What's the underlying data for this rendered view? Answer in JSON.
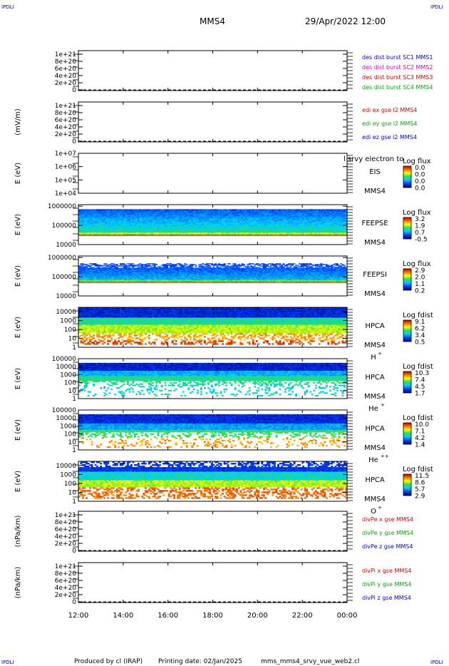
{
  "header": {
    "corner_tag": "IPDLI",
    "spacecraft": "MMS4",
    "datetime": "29/Apr/2022 12:00"
  },
  "footer": {
    "produced_by": "Produced by cl (IRAP)",
    "printing_date": "Printing date: 02/Jan/2025",
    "filename": "mms_mms4_srvy_vue_web2.cl"
  },
  "chart_data": {
    "type": "heatmap",
    "x_tick_labels": [
      "12:00",
      "14:00",
      "16:00",
      "18:00",
      "20:00",
      "22:00",
      "00:00"
    ],
    "x_hours": [
      12,
      14,
      16,
      18,
      20,
      22,
      24
    ],
    "panels": [
      {
        "kind": "line",
        "ylabel": "",
        "ytick_labels": [
          "1e+21",
          "8e+20",
          "6e+20",
          "4e+20",
          "2e+20",
          "0"
        ],
        "ytick_values": [
          1e+21,
          8e+20,
          6e+20,
          4e+20,
          2e+20,
          0
        ],
        "ylim": [
          -2e+19,
          1.1e+21
        ],
        "legend": [
          {
            "text": "des dist burst SC1 MMS1",
            "color": "#0000cc"
          },
          {
            "text": "des dist burst SC2 MMS2",
            "color": "#cc00cc"
          },
          {
            "text": "des dist burst SC3 MMS3",
            "color": "#cc0000"
          },
          {
            "text": "des dist burst SC4 MMS4",
            "color": "#00aa00"
          }
        ]
      },
      {
        "kind": "line",
        "ylabel": "(mV/m)",
        "ytick_labels": [
          "1e+21",
          "8e+20",
          "6e+20",
          "4e+20",
          "2e+20",
          "0"
        ],
        "ytick_values": [
          1e+21,
          8e+20,
          6e+20,
          4e+20,
          2e+20,
          0
        ],
        "ylim": [
          -2e+19,
          1.1e+21
        ],
        "legend": [
          {
            "text": "edi ex gse l2 MMS4",
            "color": "#cc0000"
          },
          {
            "text": "edi ey gse l2 MMS4",
            "color": "#00aa00"
          },
          {
            "text": "edi ez gse l2 MMS4",
            "color": "#0000cc"
          }
        ]
      },
      {
        "kind": "empty_spectrogram",
        "ylabel": "E (eV)",
        "ytick_labels": [
          "1e+07",
          "1e+06",
          "1e+05",
          "1e+04"
        ],
        "ytick_values": [
          10000000.0,
          1000000.0,
          100000.0,
          10000.0
        ],
        "log": true,
        "ylim": [
          10000.0,
          10000000.0
        ],
        "instrument": [
          "EIS",
          "MMS4"
        ],
        "overlay_text": "l srvy electron to",
        "colorbar": {
          "title": "Log flux",
          "labels": [
            "0.0",
            "0.0",
            "0.0",
            "0.0"
          ]
        }
      },
      {
        "kind": "spectrogram",
        "ylabel": "E (eV)",
        "ytick_labels": [
          "1000000",
          "100000",
          "10000"
        ],
        "ytick_values": [
          1000000.0,
          100000.0,
          10000.0
        ],
        "log": true,
        "ylim": [
          10000.0,
          1200000.0
        ],
        "instrument": [
          "FEEPSE",
          "MMS4"
        ],
        "colorbar": {
          "title": "Log flux",
          "labels": [
            "3.2",
            "1.9",
            "0.7",
            "-0.5"
          ]
        },
        "data_range_ev": [
          30000.0,
          700000.0
        ]
      },
      {
        "kind": "spectrogram",
        "ylabel": "E (eV)",
        "ytick_labels": [
          "1000000",
          "100000",
          "10000"
        ],
        "ytick_values": [
          1000000.0,
          100000.0,
          10000.0
        ],
        "log": true,
        "ylim": [
          10000.0,
          1200000.0
        ],
        "instrument": [
          "FEEPSI",
          "MMS4"
        ],
        "colorbar": {
          "title": "Log flux",
          "labels": [
            "2.9",
            "2.0",
            "1.1",
            "0.2"
          ]
        },
        "data_range_ev": [
          50000.0,
          500000.0
        ]
      },
      {
        "kind": "spectrogram",
        "ylabel": "E (eV)",
        "ytick_labels": [
          "10000",
          "1000",
          "100",
          "10",
          "1"
        ],
        "ytick_values": [
          10000.0,
          1000.0,
          100.0,
          10.0,
          1
        ],
        "log": true,
        "ylim": [
          1,
          30000.0
        ],
        "instrument": [
          "HPCA",
          "MMS4"
        ],
        "species": "H",
        "species_charge": "+",
        "colorbar": {
          "title": "Log fdist",
          "labels": [
            "9.1",
            "6.2",
            "3.4",
            "0.5"
          ]
        },
        "data_range_ev": [
          2,
          30000.0
        ]
      },
      {
        "kind": "spectrogram",
        "ylabel": "E (eV)",
        "ytick_labels": [
          "100000",
          "10000",
          "1000",
          "100",
          "10",
          "1"
        ],
        "ytick_values": [
          100000.0,
          10000.0,
          1000.0,
          100.0,
          10.0,
          1
        ],
        "log": true,
        "ylim": [
          1,
          100000.0
        ],
        "instrument": [
          "HPCA",
          "MMS4"
        ],
        "species": "He",
        "species_charge": "+",
        "colorbar": {
          "title": "Log fdist",
          "labels": [
            "10.3",
            "7.4",
            "4.5",
            "1.7"
          ]
        },
        "data_range_ev": [
          2,
          30000.0
        ]
      },
      {
        "kind": "spectrogram",
        "ylabel": "E (eV)",
        "ytick_labels": [
          "100000",
          "10000",
          "1000",
          "100",
          "10",
          "1"
        ],
        "ytick_values": [
          100000.0,
          10000.0,
          1000.0,
          100.0,
          10.0,
          1
        ],
        "log": true,
        "ylim": [
          1,
          100000.0
        ],
        "instrument": [
          "HPCA",
          "MMS4"
        ],
        "species": "He",
        "species_charge": "++",
        "colorbar": {
          "title": "Log fdist",
          "labels": [
            "10.0",
            "7.1",
            "4.2",
            "1.4"
          ]
        },
        "data_range_ev": [
          2,
          30000.0
        ]
      },
      {
        "kind": "spectrogram",
        "ylabel": "E (eV)",
        "ytick_labels": [
          "10000",
          "1000",
          "100",
          "10",
          "1"
        ],
        "ytick_values": [
          10000.0,
          1000.0,
          100.0,
          10.0,
          1
        ],
        "log": true,
        "ylim": [
          1,
          30000.0
        ],
        "instrument": [
          "HPCA",
          "MMS4"
        ],
        "species": "O",
        "species_charge": "+",
        "colorbar": {
          "title": "Log fdist",
          "labels": [
            "11.5",
            "8.6",
            "5.7",
            "2.9"
          ]
        },
        "data_range_ev": [
          2,
          30000.0
        ]
      },
      {
        "kind": "line",
        "ylabel": "(nPa/km)",
        "ytick_labels": [
          "1e+21",
          "8e+20",
          "6e+20",
          "4e+20",
          "2e+20",
          "0"
        ],
        "ytick_values": [
          1e+21,
          8e+20,
          6e+20,
          4e+20,
          2e+20,
          0
        ],
        "ylim": [
          -2e+19,
          1.1e+21
        ],
        "legend": [
          {
            "text": "divPe x gse MMS4",
            "color": "#cc0000"
          },
          {
            "text": "divPe y gse MMS4",
            "color": "#00aa00"
          },
          {
            "text": "divPe z gse MMS4",
            "color": "#0000cc"
          }
        ]
      },
      {
        "kind": "line",
        "ylabel": "(nPa/km)",
        "ytick_labels": [
          "1e+21",
          "8e+20",
          "6e+20",
          "4e+20",
          "2e+20",
          "0"
        ],
        "ytick_values": [
          1e+21,
          8e+20,
          6e+20,
          4e+20,
          2e+20,
          0
        ],
        "ylim": [
          -2e+19,
          1.1e+21
        ],
        "legend": [
          {
            "text": "divPi x gse MMS4",
            "color": "#cc0000"
          },
          {
            "text": "divPi y gse MMS4",
            "color": "#00aa00"
          },
          {
            "text": "divPi z gse MMS4",
            "color": "#0000cc"
          }
        ]
      }
    ]
  }
}
